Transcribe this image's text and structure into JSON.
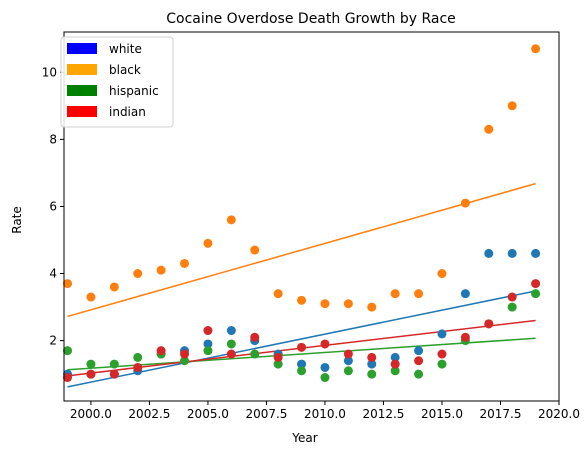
{
  "chart_data": {
    "type": "scatter",
    "title": "Cocaine Overdose Death Growth by Race",
    "xlabel": "Year",
    "ylabel": "Rate",
    "xlim": [
      1998.85,
      2020.0
    ],
    "ylim": [
      0.2,
      11.2
    ],
    "xticks": [
      2000.0,
      2002.5,
      2005.0,
      2007.5,
      2010.0,
      2012.5,
      2015.0,
      2017.5,
      2020.0
    ],
    "xtick_labels": [
      "2000.0",
      "2002.5",
      "2005.0",
      "2007.5",
      "2010.0",
      "2012.5",
      "2015.0",
      "2017.5",
      "2020.0"
    ],
    "yticks": [
      2,
      4,
      6,
      8,
      10
    ],
    "ytick_labels": [
      "2",
      "4",
      "6",
      "8",
      "10"
    ],
    "grid": false,
    "legend_position": "top-left",
    "x": [
      1999,
      2000,
      2001,
      2002,
      2003,
      2004,
      2005,
      2006,
      2007,
      2008,
      2009,
      2010,
      2011,
      2012,
      2013,
      2014,
      2015,
      2016,
      2017,
      2018,
      2019
    ],
    "series": [
      {
        "name": "white",
        "marker_color": "#1f77b4",
        "legend_color": "#0000ff",
        "values": [
          1.0,
          1.0,
          1.0,
          1.1,
          1.6,
          1.7,
          1.9,
          2.3,
          2.0,
          1.6,
          1.3,
          1.2,
          1.4,
          1.3,
          1.5,
          1.7,
          2.2,
          3.4,
          4.6,
          4.6,
          4.6
        ],
        "trend": [
          0.62,
          3.48
        ]
      },
      {
        "name": "black",
        "marker_color": "#ff7f0e",
        "legend_color": "#ffa500",
        "values": [
          3.7,
          3.3,
          3.6,
          4.0,
          4.1,
          4.3,
          4.9,
          5.6,
          4.7,
          3.4,
          3.2,
          3.1,
          3.1,
          3.0,
          3.4,
          3.4,
          4.0,
          6.1,
          8.3,
          9.0,
          10.7
        ],
        "trend": [
          2.72,
          6.68
        ]
      },
      {
        "name": "hispanic",
        "marker_color": "#2ca02c",
        "legend_color": "#008000",
        "values": [
          1.7,
          1.3,
          1.3,
          1.5,
          1.6,
          1.4,
          1.7,
          1.9,
          1.6,
          1.3,
          1.1,
          0.9,
          1.1,
          1.0,
          1.1,
          1.0,
          1.3,
          2.0,
          2.5,
          3.0,
          3.4
        ],
        "trend": [
          1.13,
          2.07
        ]
      },
      {
        "name": "indian",
        "marker_color": "#d62728",
        "legend_color": "#ff0000",
        "values": [
          0.9,
          1.0,
          1.0,
          1.2,
          1.7,
          1.6,
          2.3,
          1.6,
          2.1,
          1.5,
          1.8,
          1.9,
          1.6,
          1.5,
          1.3,
          1.4,
          1.6,
          2.1,
          2.5,
          3.3,
          3.7
        ],
        "trend": [
          0.95,
          2.6
        ]
      }
    ]
  }
}
